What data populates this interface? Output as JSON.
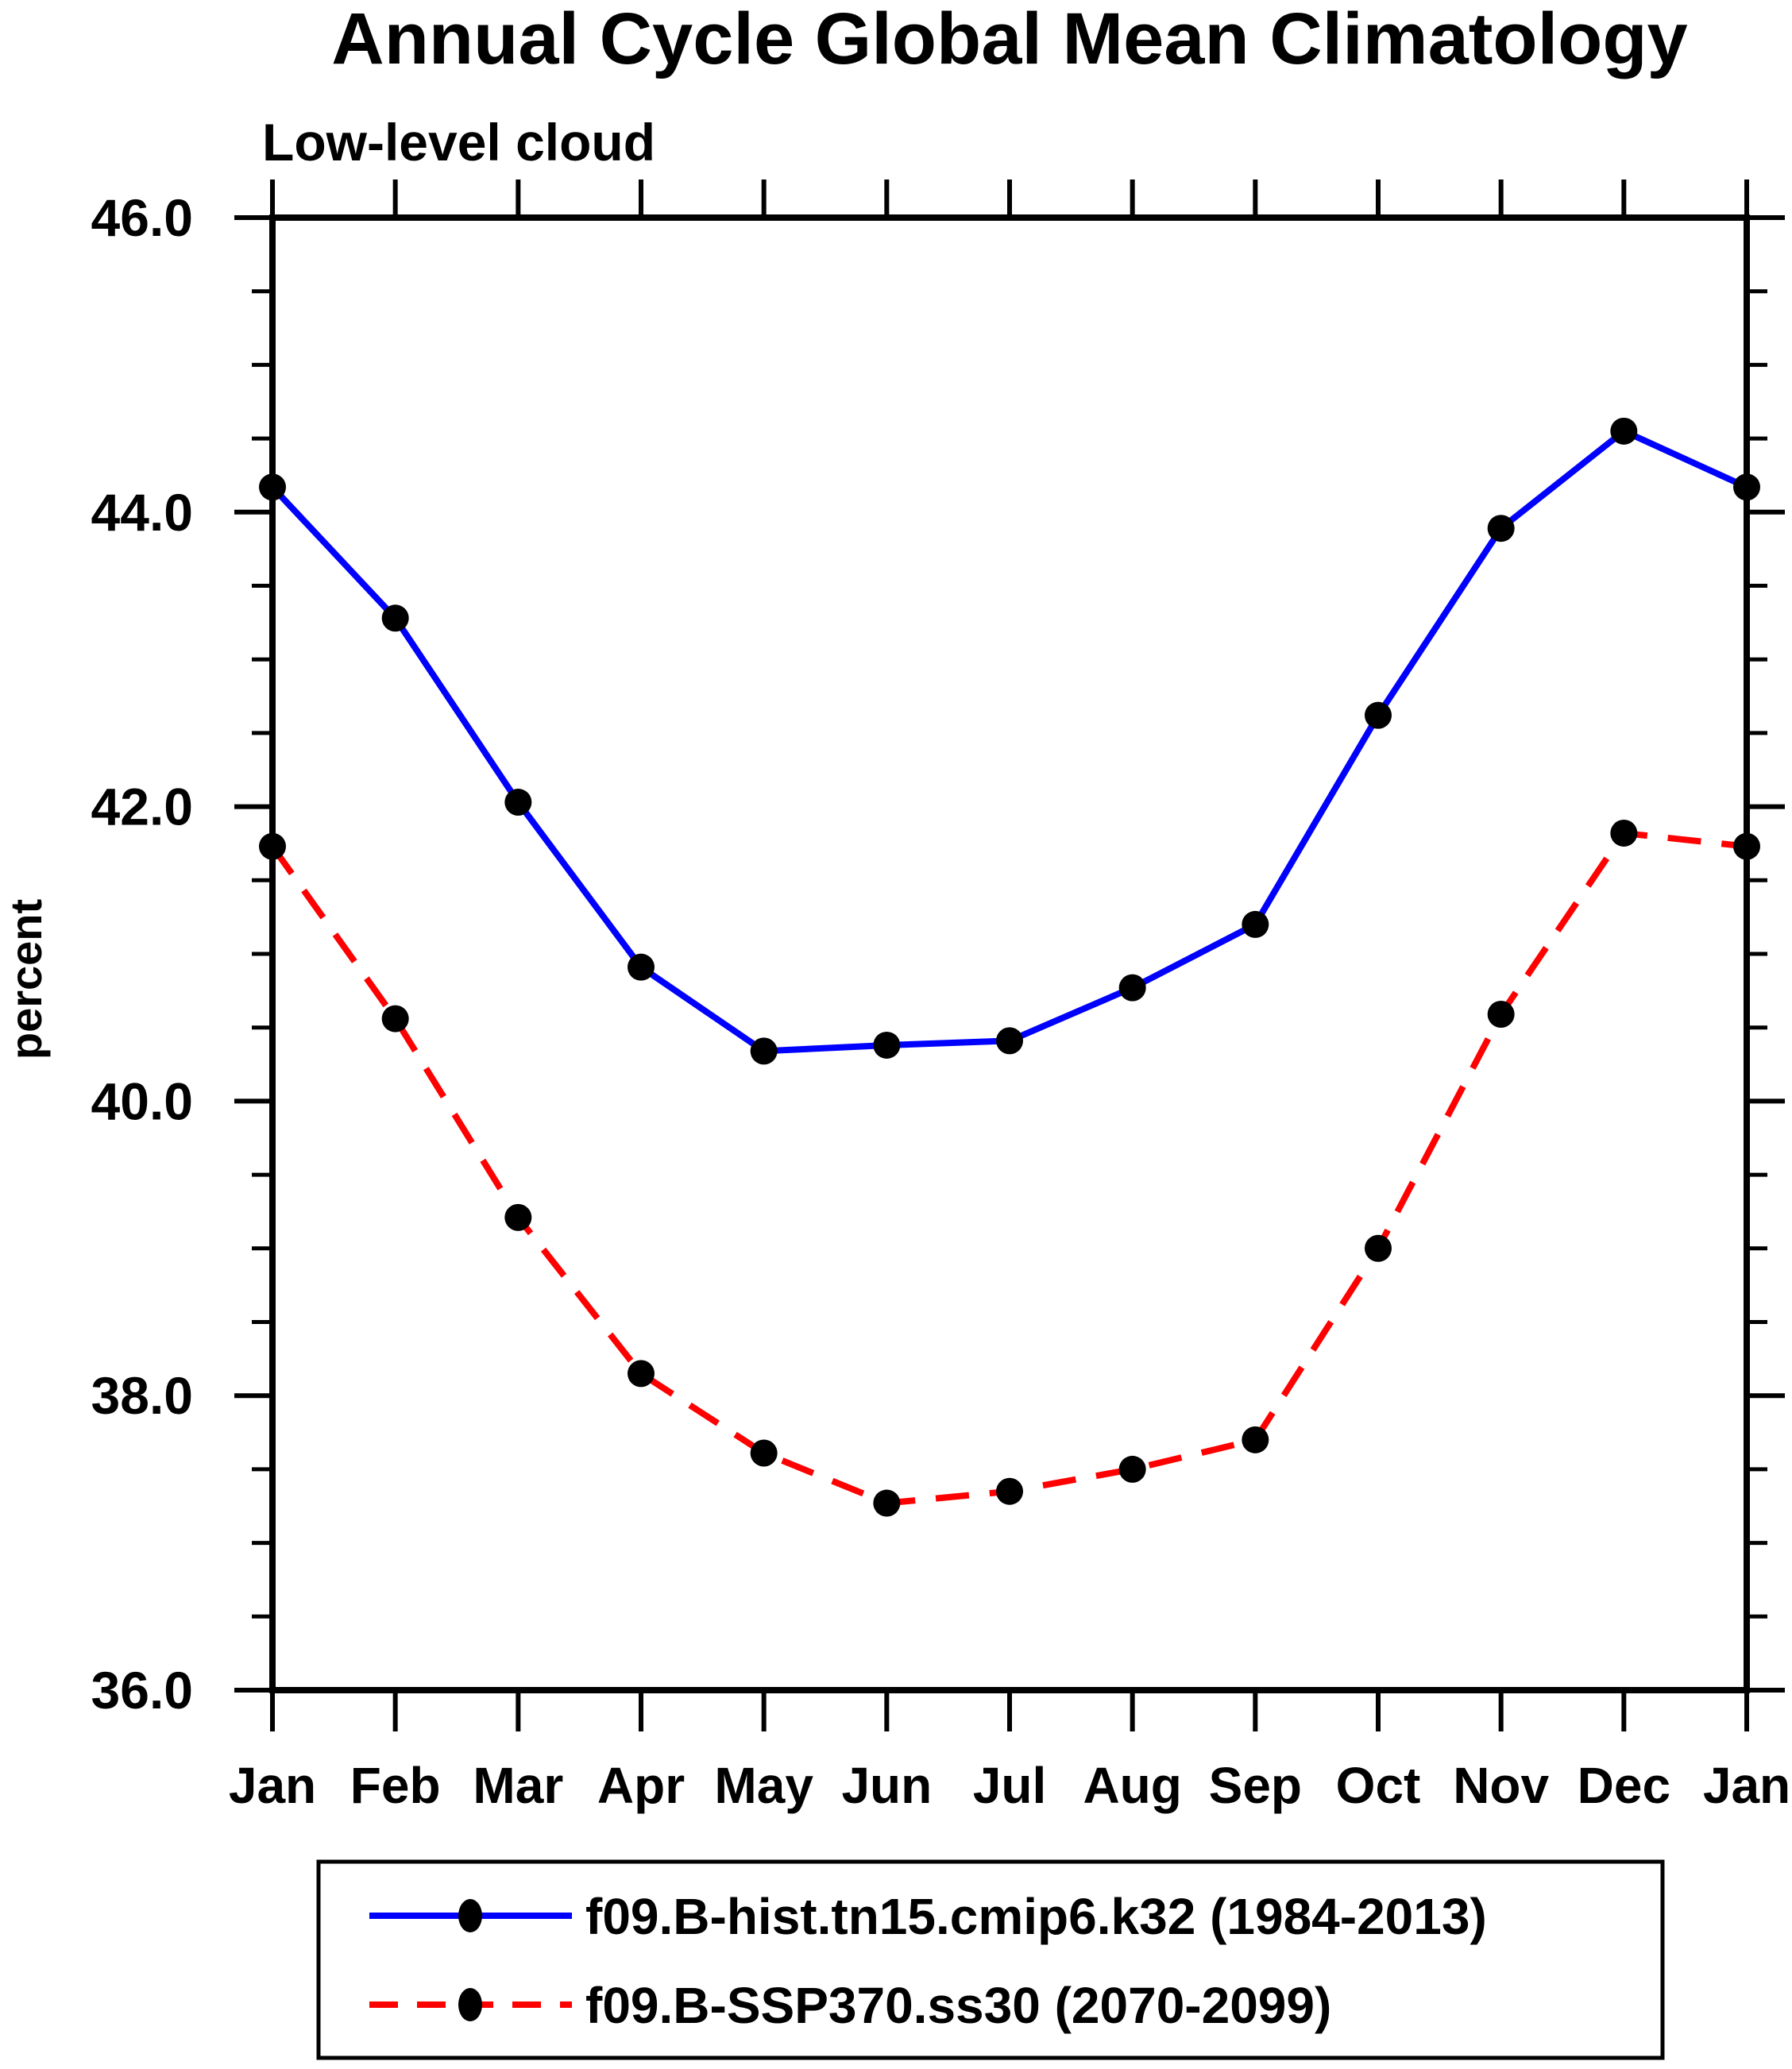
{
  "page": {
    "background_color": "#ffffff",
    "text_color": "#000000"
  },
  "chart_data": {
    "type": "line",
    "title": "Annual Cycle Global Mean Climatology",
    "subtitle": "Low-level cloud",
    "ylabel": "percent",
    "x_categories": [
      "Jan",
      "Feb",
      "Mar",
      "Apr",
      "May",
      "Jun",
      "Jul",
      "Aug",
      "Sep",
      "Oct",
      "Nov",
      "Dec",
      "Jan"
    ],
    "ylim": [
      36.0,
      46.0
    ],
    "y_major_tick_step": 2.0,
    "y_minor_tick_step": 0.5,
    "y_tick_labels": [
      "36.0",
      "38.0",
      "40.0",
      "42.0",
      "44.0",
      "46.0"
    ],
    "grid": false,
    "legend_position": "bottom",
    "series": [
      {
        "name": "f09.B-hist.tn15.cmip6.k32 (1984-2013)",
        "color": "#0000ff",
        "line_style": "solid",
        "marker": "filled-circle",
        "marker_color": "#000000",
        "values": [
          44.17,
          43.28,
          42.03,
          40.91,
          40.34,
          40.38,
          40.41,
          40.77,
          41.2,
          42.62,
          43.89,
          44.55,
          44.17
        ]
      },
      {
        "name": "f09.B-SSP370.ss30 (2070-2099)",
        "color": "#ff0000",
        "line_style": "dashed",
        "marker": "filled-circle",
        "marker_color": "#000000",
        "values": [
          41.73,
          40.56,
          39.21,
          38.15,
          37.61,
          37.27,
          37.35,
          37.5,
          37.7,
          39.0,
          40.59,
          41.82,
          41.73
        ]
      }
    ]
  }
}
